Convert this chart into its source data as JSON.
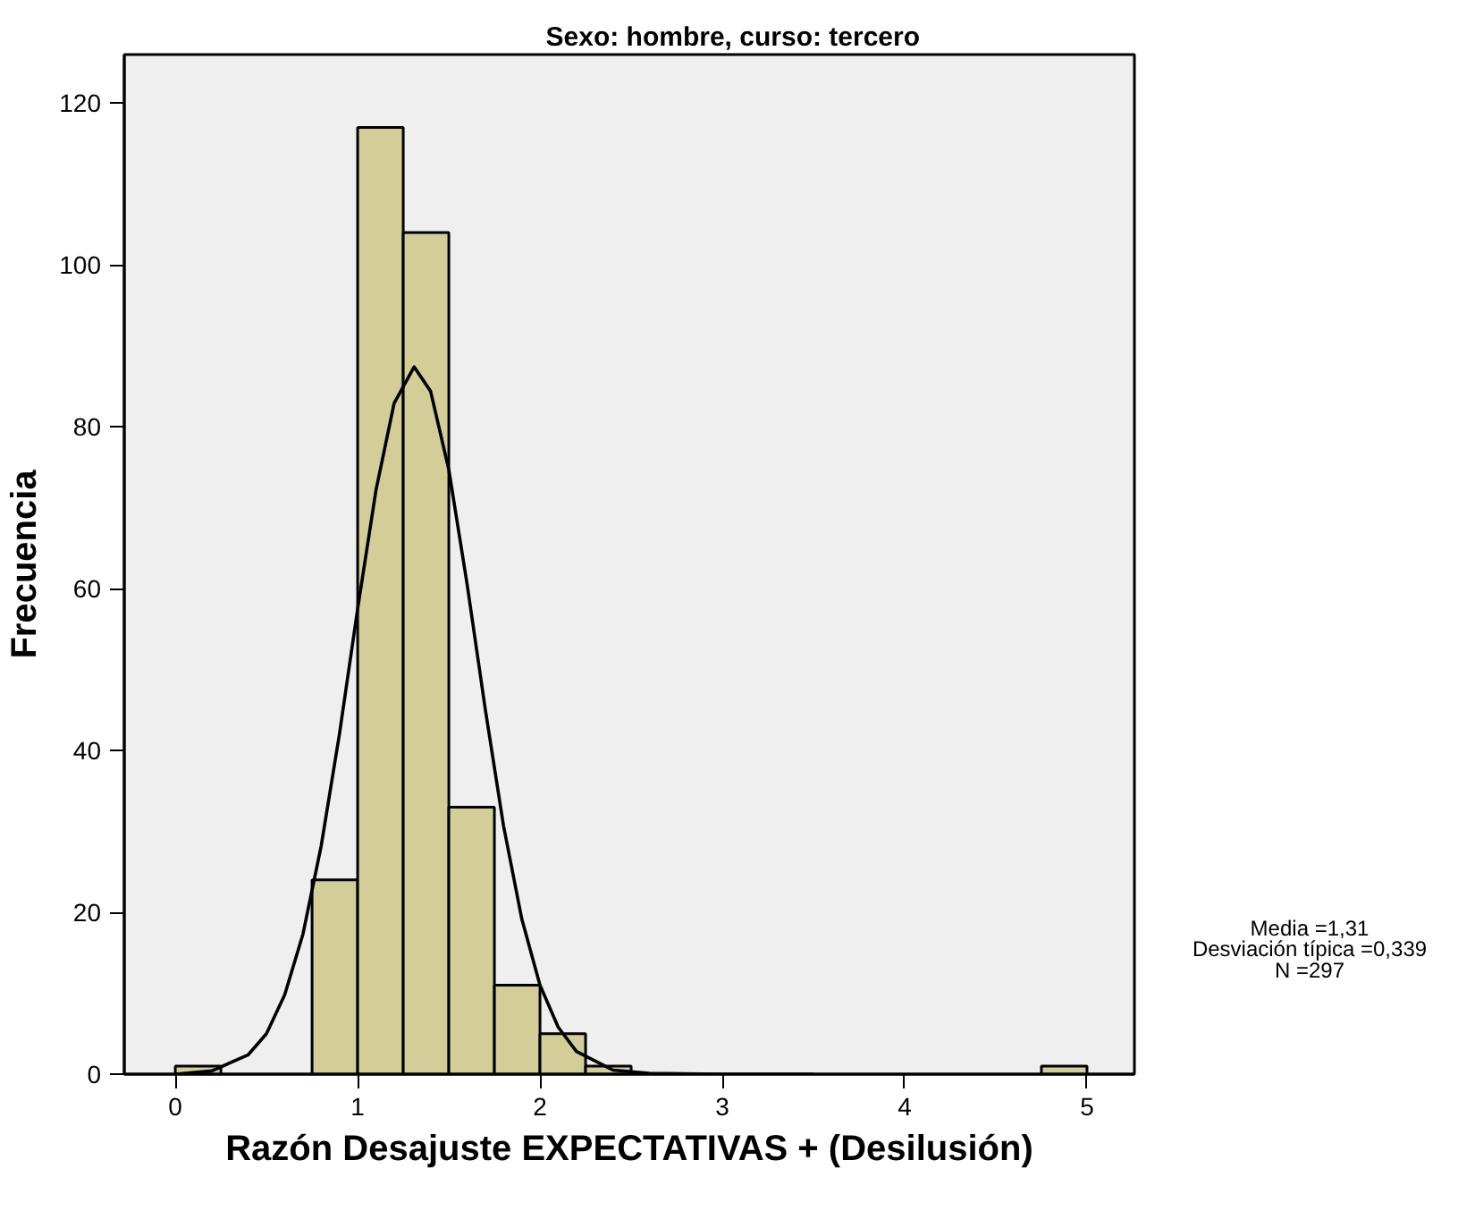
{
  "chart_data": [
    {
      "type": "histogram",
      "title": "Sexo: hombre, curso: tercero",
      "xlabel": "Razón Desajuste EXPECTATIVAS + (Desilusión)",
      "ylabel": "Frecuencia",
      "bins": [
        0,
        0.25,
        0.5,
        0.75,
        1.0,
        1.25,
        1.5,
        1.75,
        2.0,
        2.25,
        2.5,
        2.75,
        3.0,
        3.25,
        3.5,
        3.75,
        4.0,
        4.25,
        4.5,
        4.75,
        5.0
      ],
      "values": [
        1,
        0,
        0,
        24,
        117,
        104,
        33,
        11,
        5,
        1,
        0,
        0,
        0,
        0,
        0,
        0,
        0,
        0,
        0,
        1
      ],
      "color": "#d3ce97",
      "series": [
        {
          "type": "line",
          "color": "#000000",
          "x": [
            0,
            0.2,
            0.4,
            0.5,
            0.6,
            0.7,
            0.8,
            0.9,
            1.0,
            1.1,
            1.2,
            1.31,
            1.4,
            1.5,
            1.6,
            1.7,
            1.8,
            1.9,
            2.0,
            2.1,
            2.2,
            2.4,
            2.6,
            3.0,
            3.5
          ],
          "values": [
            0,
            0.4,
            2.4,
            5.0,
            9.8,
            17.3,
            28.2,
            42.0,
            57.5,
            72.1,
            82.9,
            87.4,
            84.4,
            74.7,
            60.6,
            45.1,
            30.7,
            19.2,
            11.0,
            5.8,
            2.8,
            0.5,
            0.1,
            0,
            0
          ]
        }
      ],
      "xlim": [
        -0.28,
        5.26
      ],
      "ylim": [
        0,
        126
      ],
      "xticks": [
        0,
        1,
        2,
        3,
        4,
        5
      ],
      "yticks": [
        0,
        20,
        40,
        60,
        80,
        100,
        120
      ],
      "grid": false,
      "annotations": [
        "Media =1,31",
        "Desviación típica =0,339",
        "N =297"
      ]
    }
  ]
}
